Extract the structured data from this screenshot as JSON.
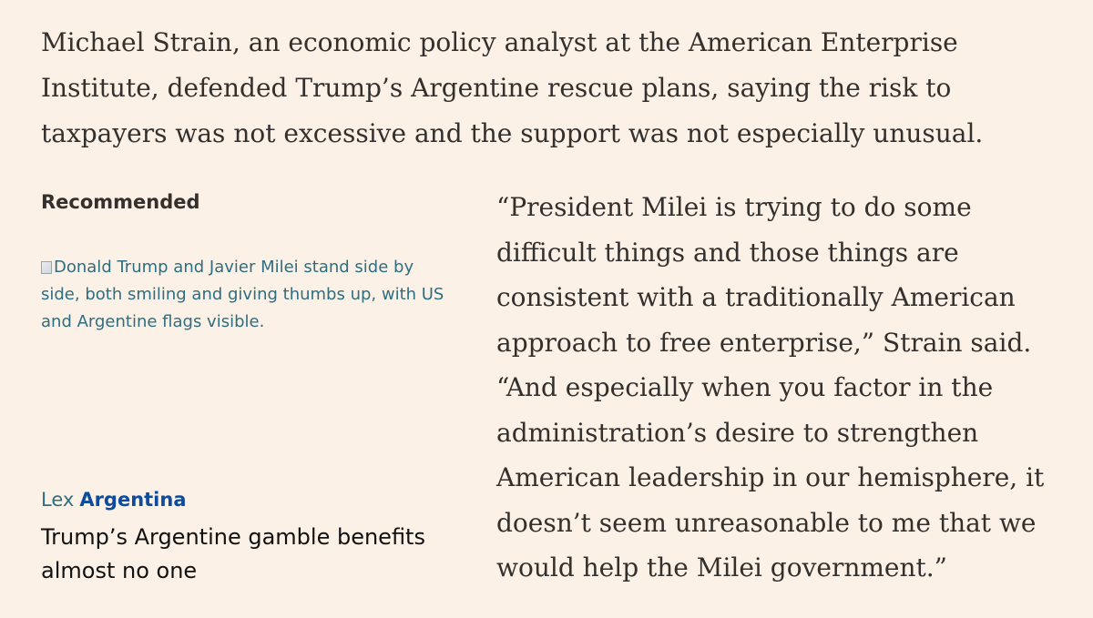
{
  "article": {
    "lead_paragraph": "Michael Strain, an economic policy analyst at the American Enterprise Institute, defended Trump’s Argentine rescue plans, saying the risk to taxpayers was not excessive and the support was not especially unusual.",
    "quote_paragraph": "“President Milei is trying to do some difficult things and those things are consistent with a traditionally American approach to free enterprise,” Strain said. “And especially when you factor in the administration’s desire to strengthen American leadership in our hemisphere, it doesn’t seem unreasonable to me that we would help the Milei government.”"
  },
  "recommended": {
    "heading": "Recommended",
    "image_alt": "Donald Trump and Javier Milei stand side by side, both smiling and giving thumbs up, with US and Argentine flags visible.",
    "genre": "Lex",
    "topic": "Argentina",
    "headline": "Trump’s Argentine gamble benefits almost no one"
  },
  "colors": {
    "background": "#fcf1e6",
    "body_text": "#33302e",
    "link_teal": "#2e6e80",
    "topic_blue": "#0d4b9e",
    "headline": "#111111"
  }
}
